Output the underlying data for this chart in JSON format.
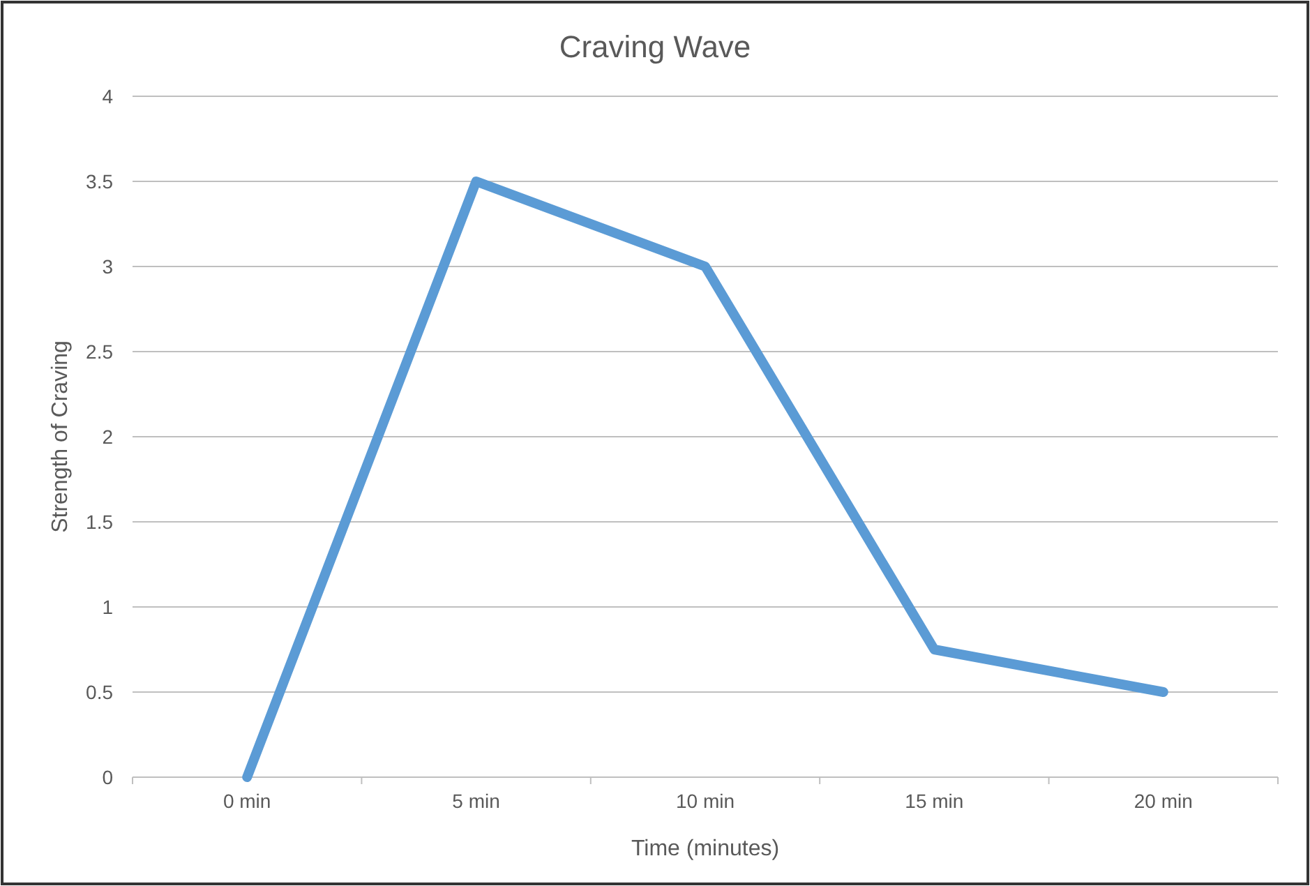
{
  "chart_data": {
    "type": "line",
    "title": "Craving Wave",
    "xlabel": "Time (minutes)",
    "ylabel": "Strength of Craving",
    "categories": [
      "0 min",
      "5 min",
      "10 min",
      "15 min",
      "20 min"
    ],
    "series": [
      {
        "color": "#5b9bd5",
        "values": [
          0,
          3.5,
          3,
          0.75,
          0.5
        ]
      }
    ],
    "ylim": [
      0,
      4
    ],
    "yticks": [
      0,
      0.5,
      1,
      1.5,
      2,
      2.5,
      3,
      3.5,
      4
    ],
    "grid": "y",
    "marker": "none",
    "line_style": "solid"
  }
}
